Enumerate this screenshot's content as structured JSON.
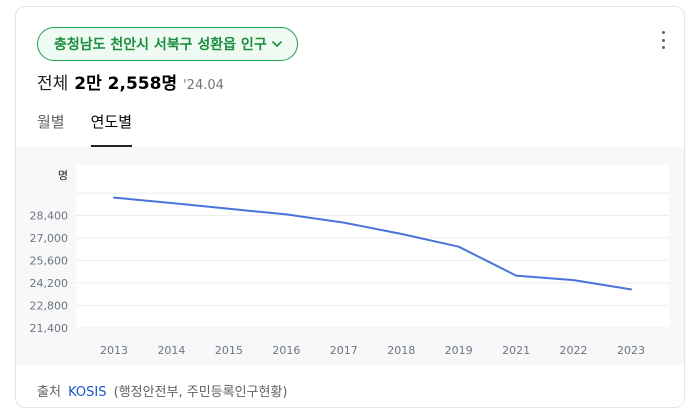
{
  "header": {
    "region": "충청남도 천안시 서북구 성환읍 인구",
    "total_label": "전체",
    "total_value": "2만 2,558명",
    "total_date": "'24.04"
  },
  "tabs": [
    {
      "label": "월별",
      "active": false
    },
    {
      "label": "연도별",
      "active": true
    }
  ],
  "footer": {
    "source_label": "출처",
    "source_link": "KOSIS",
    "source_detail": "(행정안전부, 주민등록인구현황)"
  },
  "chart_data": {
    "type": "line",
    "unit_label": "명",
    "x": [
      "2013",
      "2014",
      "2015",
      "2016",
      "2017",
      "2018",
      "2019",
      "2021",
      "2022",
      "2023"
    ],
    "series": [
      {
        "values": [
          29520,
          29180,
          28820,
          28470,
          27960,
          27260,
          26460,
          24660,
          24380,
          23800
        ],
        "color": "#4a74d9"
      }
    ],
    "yticks": [
      21400,
      22800,
      24200,
      25600,
      27000,
      28400
    ],
    "ytick_labels": [
      "21,400",
      "22,800",
      "24,200",
      "25,600",
      "27,000",
      "28,400"
    ],
    "ylim": [
      21400,
      30800
    ],
    "grid": true,
    "legend": "none"
  }
}
